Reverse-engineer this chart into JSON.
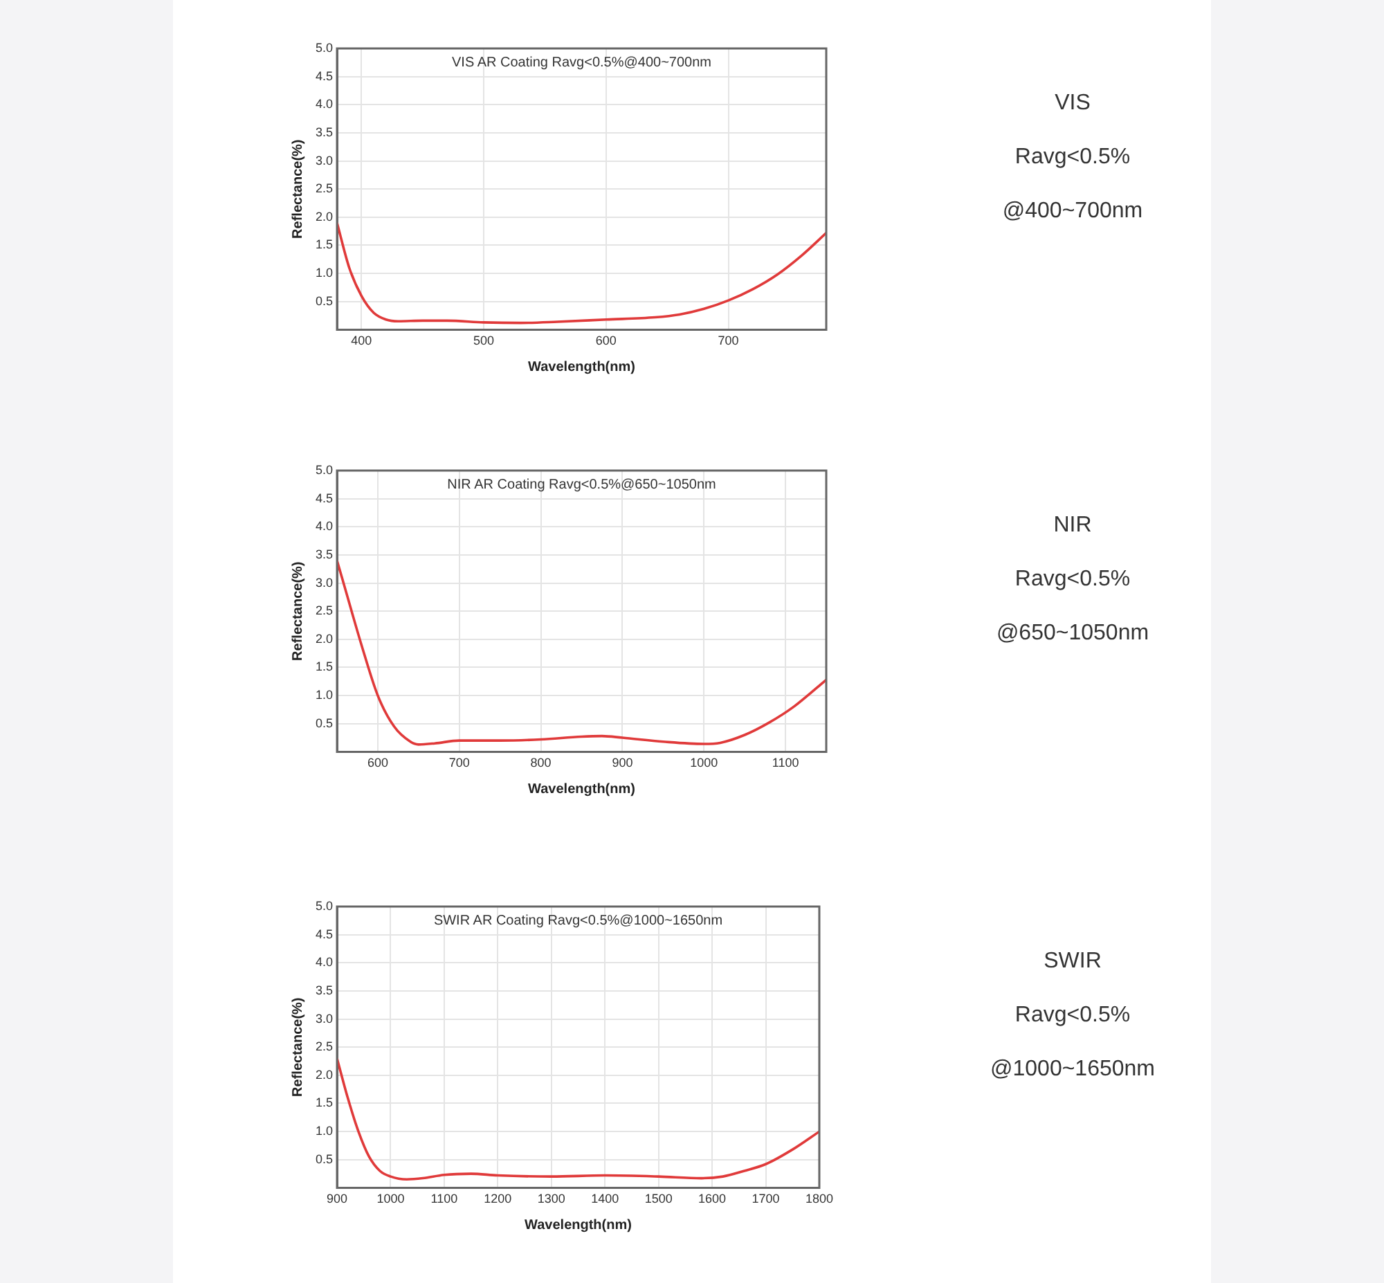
{
  "chart_data": [
    {
      "type": "line",
      "title": "VIS AR Coating Ravg<0.5%@400~700nm",
      "xlabel": "Wavelength(nm)",
      "ylabel": "Reflectance(%)",
      "annotations": [
        "VIS",
        "Ravg<0.5%",
        "@400~700nm"
      ],
      "series": [
        {
          "color": "#e03a3a",
          "x": [
            380,
            390,
            400,
            410,
            420,
            430,
            450,
            470,
            500,
            530,
            560,
            600,
            640,
            660,
            680,
            700,
            720,
            740,
            760,
            780
          ],
          "values": [
            1.9,
            1.1,
            0.6,
            0.3,
            0.18,
            0.15,
            0.16,
            0.16,
            0.13,
            0.12,
            0.14,
            0.18,
            0.22,
            0.27,
            0.37,
            0.52,
            0.72,
            0.98,
            1.32,
            1.72
          ]
        }
      ],
      "xlim": [
        380,
        780
      ],
      "xticks": [
        400,
        500,
        600,
        700
      ],
      "ylim": [
        0,
        5
      ],
      "yticks": [
        {
          "value": 0,
          "label": null
        },
        0.5,
        {
          "value": 1,
          "label": "1.0"
        },
        1.5,
        {
          "value": 2,
          "label": "2.0"
        },
        2.5,
        {
          "value": 3,
          "label": "3.0"
        },
        3.5,
        {
          "value": 4,
          "label": "4.0"
        },
        4.5,
        {
          "value": 5,
          "label": "5.0"
        }
      ],
      "grid": true,
      "legend": false,
      "marker": "none",
      "line_style": "solid"
    },
    {
      "type": "line",
      "title": "NIR AR Coating Ravg<0.5%@650~1050nm",
      "xlabel": "Wavelength(nm)",
      "ylabel": "Reflectance(%)",
      "annotations": [
        "NIR",
        "Ravg<0.5%",
        "@650~1050nm"
      ],
      "series": [
        {
          "color": "#e03a3a",
          "x": [
            550,
            560,
            580,
            600,
            620,
            640,
            650,
            670,
            700,
            750,
            800,
            850,
            875,
            900,
            950,
            1000,
            1020,
            1050,
            1080,
            1110,
            1150
          ],
          "values": [
            3.4,
            2.9,
            1.9,
            1.0,
            0.45,
            0.18,
            0.13,
            0.15,
            0.2,
            0.2,
            0.22,
            0.27,
            0.28,
            0.25,
            0.18,
            0.14,
            0.16,
            0.3,
            0.52,
            0.8,
            1.28
          ]
        }
      ],
      "xlim": [
        550,
        1150
      ],
      "xticks": [
        600,
        700,
        800,
        900,
        1000,
        1100
      ],
      "ylim": [
        0,
        5
      ],
      "yticks": [
        {
          "value": 0,
          "label": null
        },
        0.5,
        {
          "value": 1,
          "label": "1.0"
        },
        1.5,
        {
          "value": 2,
          "label": "2.0"
        },
        2.5,
        {
          "value": 3,
          "label": "3.0"
        },
        3.5,
        {
          "value": 4,
          "label": "4.0"
        },
        4.5,
        {
          "value": 5,
          "label": "5.0"
        }
      ],
      "grid": true,
      "legend": false,
      "marker": "none",
      "line_style": "solid"
    },
    {
      "type": "line",
      "title": "SWIR AR Coating Ravg<0.5%@1000~1650nm",
      "xlabel": "Wavelength(nm)",
      "ylabel": "Reflectance(%)",
      "annotations": [
        "SWIR",
        "Ravg<0.5%",
        "@1000~1650nm"
      ],
      "series": [
        {
          "color": "#e03a3a",
          "x": [
            900,
            920,
            940,
            960,
            980,
            1000,
            1030,
            1060,
            1100,
            1150,
            1200,
            1300,
            1400,
            1500,
            1580,
            1620,
            1660,
            1700,
            1750,
            1800
          ],
          "values": [
            2.3,
            1.6,
            1.0,
            0.55,
            0.3,
            0.2,
            0.15,
            0.17,
            0.23,
            0.25,
            0.22,
            0.2,
            0.22,
            0.2,
            0.17,
            0.2,
            0.3,
            0.42,
            0.68,
            1.0
          ]
        }
      ],
      "xlim": [
        900,
        1800
      ],
      "xticks": [
        900,
        1000,
        1100,
        1200,
        1300,
        1400,
        1500,
        1600,
        1700,
        1800
      ],
      "ylim": [
        0,
        5
      ],
      "yticks": [
        {
          "value": 0,
          "label": null
        },
        0.5,
        {
          "value": 1,
          "label": "1.0"
        },
        1.5,
        {
          "value": 2,
          "label": "2.0"
        },
        2.5,
        {
          "value": 3,
          "label": "3.0"
        },
        3.5,
        {
          "value": 4,
          "label": "4.0"
        },
        4.5,
        {
          "value": 5,
          "label": "5.0"
        }
      ],
      "grid": true,
      "legend": false,
      "marker": "none",
      "line_style": "solid"
    }
  ]
}
